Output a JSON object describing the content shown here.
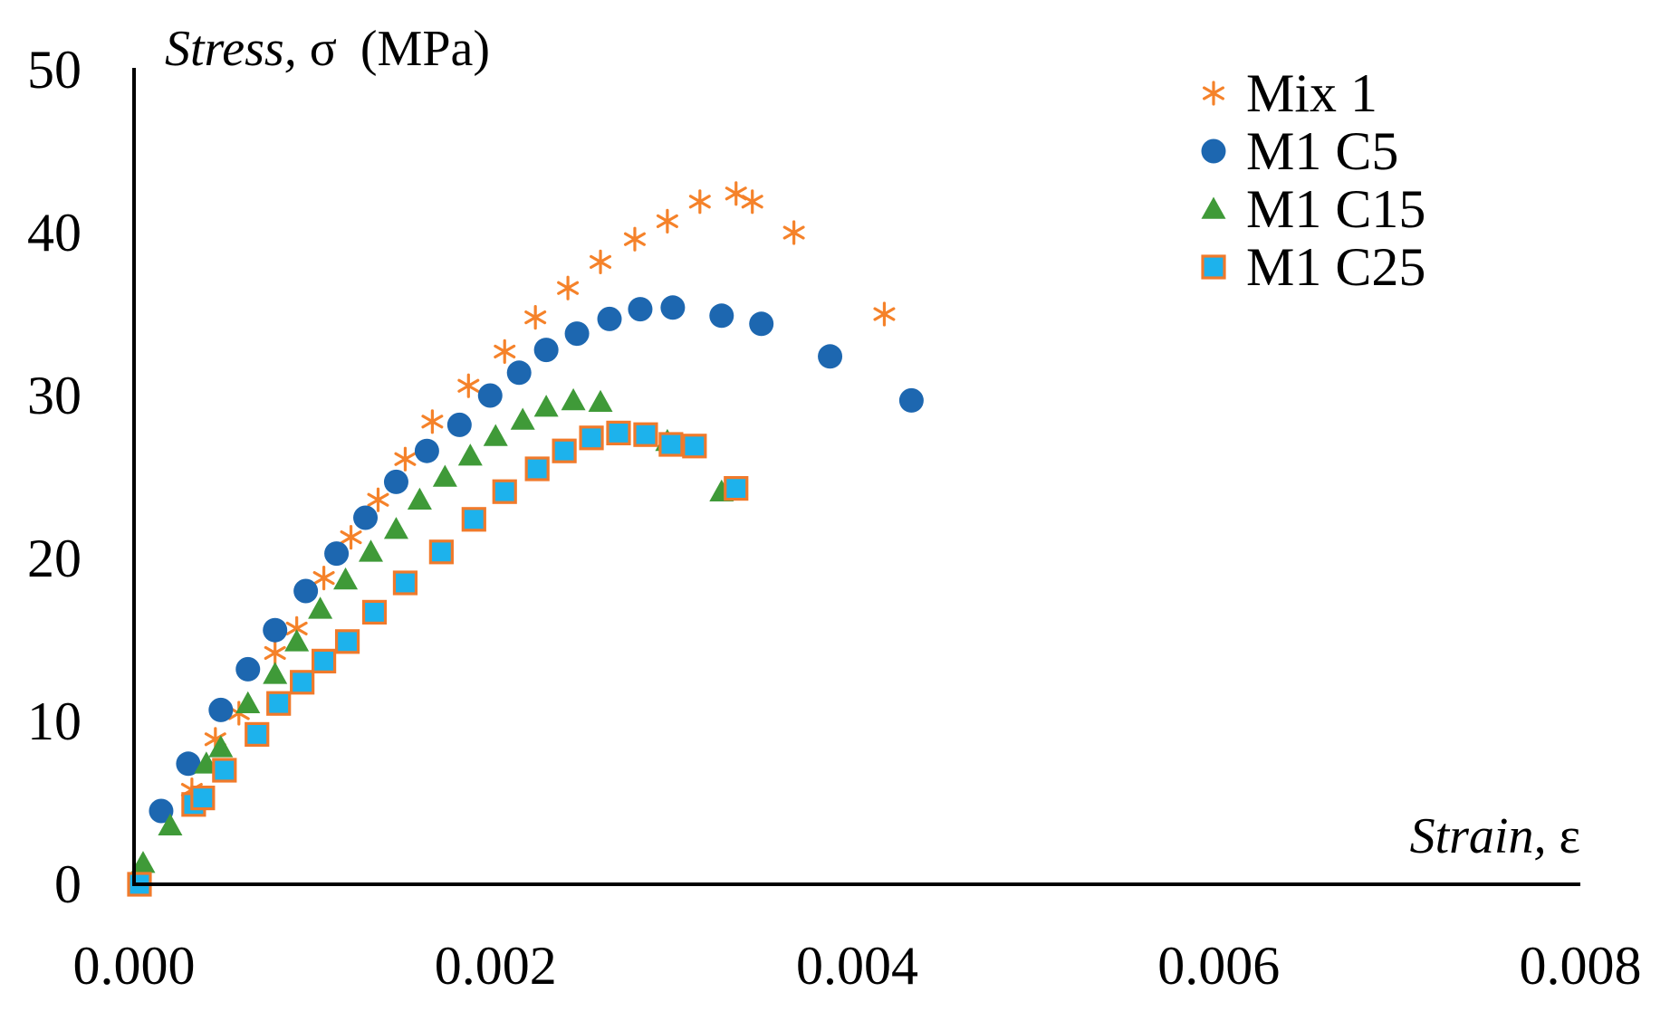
{
  "chart_data": {
    "type": "scatter",
    "title": "",
    "xlabel": "Strain, ε",
    "ylabel": "Stress, σ (MPa)",
    "xlabel_italic": "Strain,",
    "xlabel_symbol": "ε",
    "ylabel_italic": "Stress,",
    "ylabel_symbol": "σ",
    "ylabel_unit": "(MPa)",
    "xlim": [
      0,
      0.008
    ],
    "ylim": [
      0,
      50
    ],
    "xticks": [
      0,
      0.002,
      0.004,
      0.006,
      0.008
    ],
    "xtick_labels": [
      "0.000",
      "0.002",
      "0.004",
      "0.006",
      "0.008"
    ],
    "yticks": [
      0,
      10,
      20,
      30,
      40,
      50
    ],
    "ytick_labels": [
      "0",
      "10",
      "20",
      "30",
      "40",
      "50"
    ],
    "grid": false,
    "legend_position": "top-right",
    "series": [
      {
        "name": "Mix 1",
        "marker": "asterisk",
        "color": "#F5822A",
        "x": [
          0.00032,
          0.00045,
          0.00058,
          0.00078,
          0.0009,
          0.00105,
          0.0012,
          0.00135,
          0.0015,
          0.00165,
          0.00185,
          0.00205,
          0.00222,
          0.0024,
          0.00258,
          0.00277,
          0.00295,
          0.00313,
          0.00333,
          0.00342,
          0.00365,
          0.00415
        ],
        "y": [
          5.8,
          8.9,
          10.5,
          14.2,
          15.7,
          18.8,
          21.3,
          23.6,
          26.1,
          28.4,
          30.6,
          32.7,
          34.8,
          36.6,
          38.2,
          39.6,
          40.7,
          41.9,
          42.4,
          41.9,
          40.0,
          35.0
        ]
      },
      {
        "name": "M1 C5",
        "marker": "circle",
        "color": "#1D67B0",
        "x": [
          0.00015,
          0.0003,
          0.00048,
          0.00063,
          0.00078,
          0.00095,
          0.00112,
          0.00128,
          0.00145,
          0.00162,
          0.0018,
          0.00197,
          0.00213,
          0.00228,
          0.00245,
          0.00263,
          0.0028,
          0.00298,
          0.00325,
          0.00347,
          0.00385,
          0.0043
        ],
        "y": [
          4.5,
          7.4,
          10.7,
          13.2,
          15.6,
          18.0,
          20.3,
          22.5,
          24.7,
          26.6,
          28.2,
          30.0,
          31.4,
          32.8,
          33.8,
          34.7,
          35.3,
          35.4,
          34.9,
          34.4,
          32.4,
          29.7
        ]
      },
      {
        "name": "M1 C15",
        "marker": "triangle",
        "color": "#3F9A38",
        "x": [
          5e-05,
          0.0002,
          0.00033,
          0.0004,
          0.00048,
          0.00063,
          0.00078,
          0.0009,
          0.00103,
          0.00117,
          0.00131,
          0.00145,
          0.00158,
          0.00172,
          0.00186,
          0.002,
          0.00215,
          0.00228,
          0.00243,
          0.00258,
          0.00295,
          0.00325
        ],
        "y": [
          1.3,
          3.6,
          5.0,
          7.4,
          8.4,
          11.1,
          12.9,
          14.9,
          16.9,
          18.7,
          20.4,
          21.8,
          23.6,
          25.0,
          26.3,
          27.5,
          28.5,
          29.3,
          29.7,
          29.6,
          27.2,
          24.1
        ]
      },
      {
        "name": "M1 C25",
        "marker": "square",
        "color": "#1DB2EC",
        "edge_color": "#F07A2B",
        "x": [
          3e-05,
          0.00033,
          0.00038,
          0.0005,
          0.00068,
          0.0008,
          0.00093,
          0.00105,
          0.00118,
          0.00133,
          0.0015,
          0.0017,
          0.00188,
          0.00205,
          0.00223,
          0.00238,
          0.00253,
          0.00268,
          0.00283,
          0.00297,
          0.0031,
          0.00333
        ],
        "y": [
          0.0,
          4.9,
          5.3,
          7.0,
          9.2,
          11.1,
          12.4,
          13.7,
          14.9,
          16.7,
          18.5,
          20.4,
          22.4,
          24.1,
          25.5,
          26.6,
          27.4,
          27.7,
          27.6,
          27.0,
          26.9,
          24.3
        ]
      }
    ]
  }
}
